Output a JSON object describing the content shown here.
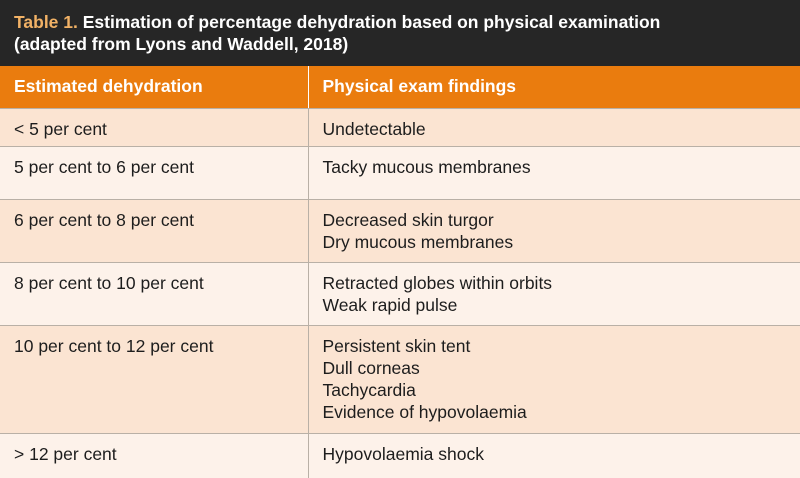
{
  "title": {
    "label": "Table 1.",
    "line1": " Estimation of percentage dehydration based on physical examination",
    "line2": "(adapted from Lyons and Waddell, 2018)"
  },
  "table": {
    "headers": [
      "Estimated dehydration",
      "Physical exam findings"
    ],
    "rows": [
      {
        "dehydration": "< 5 per cent",
        "findings": [
          "Undetectable"
        ]
      },
      {
        "dehydration": "5 per cent to 6 per cent",
        "findings": [
          "Tacky mucous membranes"
        ]
      },
      {
        "dehydration": "6 per cent to 8 per cent",
        "findings": [
          "Decreased skin turgor",
          "Dry mucous membranes"
        ]
      },
      {
        "dehydration": "8 per cent to 10 per cent",
        "findings": [
          "Retracted globes within orbits",
          "Weak rapid pulse"
        ]
      },
      {
        "dehydration": "10 per cent to 12 per cent",
        "findings": [
          "Persistent skin tent",
          "Dull corneas",
          "Tachycardia",
          "Evidence of hypovolaemia"
        ]
      },
      {
        "dehydration": "> 12 per cent",
        "findings": [
          "Hypovolaemia shock"
        ]
      }
    ]
  },
  "colors": {
    "title_bar": "#262626",
    "title_label": "#f2b266",
    "header": "#ea7c0e",
    "row_odd": "#fbe4d2",
    "row_even": "#fdf2ea"
  }
}
